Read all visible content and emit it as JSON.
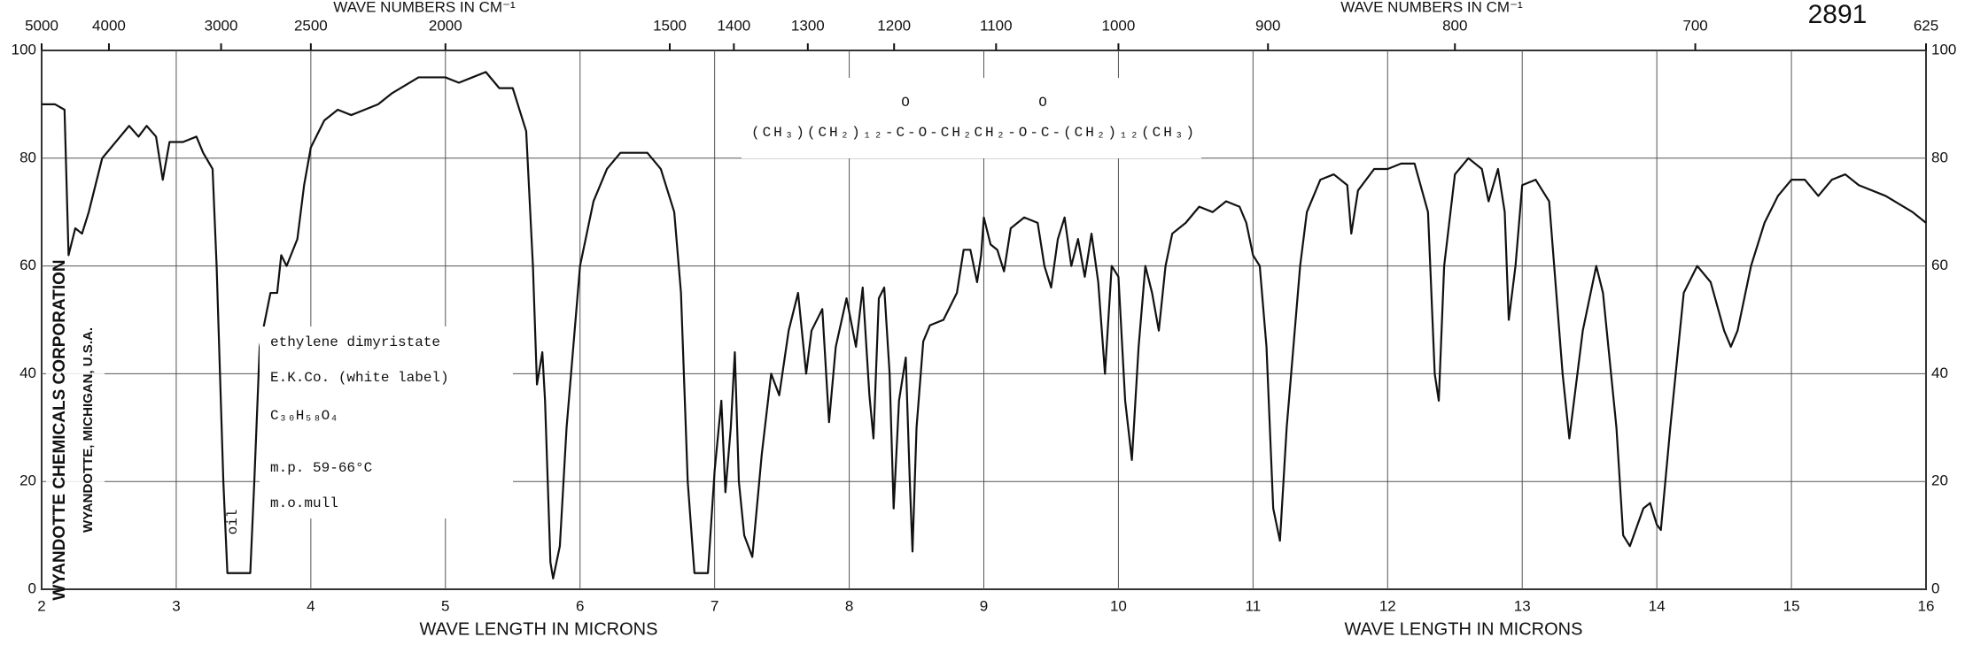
{
  "chart_data": {
    "type": "line",
    "title": "2891",
    "x_label": "WAVE LENGTH IN MICRONS",
    "x2_label": "WAVE NUMBERS IN CM⁻¹",
    "x": [
      2.0,
      2.1,
      2.17,
      2.2,
      2.25,
      2.3,
      2.35,
      2.45,
      2.55,
      2.65,
      2.72,
      2.78,
      2.85,
      2.9,
      2.95,
      3.05,
      3.15,
      3.2,
      3.27,
      3.3,
      3.35,
      3.38,
      3.55,
      3.58,
      3.62,
      3.7,
      3.75,
      3.78,
      3.82,
      3.9,
      3.95,
      4.0,
      4.1,
      4.2,
      4.3,
      4.5,
      4.6,
      4.8,
      5.0,
      5.1,
      5.2,
      5.3,
      5.4,
      5.5,
      5.6,
      5.65,
      5.68,
      5.72,
      5.74,
      5.78,
      5.8,
      5.85,
      5.9,
      5.95,
      6.0,
      6.1,
      6.2,
      6.3,
      6.4,
      6.5,
      6.6,
      6.7,
      6.75,
      6.8,
      6.85,
      6.95,
      7.0,
      7.05,
      7.08,
      7.12,
      7.15,
      7.18,
      7.22,
      7.28,
      7.35,
      7.42,
      7.48,
      7.55,
      7.62,
      7.68,
      7.72,
      7.8,
      7.85,
      7.9,
      7.98,
      8.05,
      8.1,
      8.15,
      8.18,
      8.22,
      8.26,
      8.3,
      8.33,
      8.37,
      8.42,
      8.45,
      8.47,
      8.5,
      8.55,
      8.6,
      8.7,
      8.8,
      8.85,
      8.9,
      8.95,
      8.98,
      9.0,
      9.05,
      9.1,
      9.15,
      9.2,
      9.3,
      9.4,
      9.45,
      9.5,
      9.55,
      9.6,
      9.65,
      9.7,
      9.75,
      9.8,
      9.85,
      9.9,
      9.95,
      10.0,
      10.05,
      10.1,
      10.15,
      10.2,
      10.25,
      10.3,
      10.35,
      10.4,
      10.5,
      10.6,
      10.7,
      10.8,
      10.9,
      10.95,
      11.0,
      11.05,
      11.1,
      11.15,
      11.2,
      11.25,
      11.35,
      11.4,
      11.5,
      11.6,
      11.7,
      11.73,
      11.78,
      11.9,
      12.0,
      12.1,
      12.2,
      12.3,
      12.35,
      12.38,
      12.42,
      12.5,
      12.6,
      12.7,
      12.75,
      12.82,
      12.87,
      12.9,
      12.95,
      13.0,
      13.1,
      13.2,
      13.3,
      13.35,
      13.45,
      13.55,
      13.6,
      13.7,
      13.75,
      13.8,
      13.9,
      13.95,
      14.0,
      14.03,
      14.1,
      14.2,
      14.3,
      14.4,
      14.5,
      14.55,
      14.6,
      14.7,
      14.8,
      14.9,
      15.0,
      15.1,
      15.2,
      15.3,
      15.4,
      15.5,
      15.7,
      15.9,
      16.0
    ],
    "values": [
      90,
      90,
      89,
      62,
      67,
      66,
      70,
      80,
      83,
      86,
      84,
      86,
      84,
      76,
      83,
      83,
      84,
      81,
      78,
      60,
      20,
      3,
      3,
      20,
      45,
      55,
      55,
      62,
      60,
      65,
      75,
      82,
      87,
      89,
      88,
      90,
      92,
      95,
      95,
      94,
      95,
      96,
      93,
      93,
      85,
      60,
      38,
      44,
      35,
      5,
      2,
      8,
      30,
      45,
      60,
      72,
      78,
      81,
      81,
      81,
      78,
      70,
      55,
      20,
      3,
      3,
      22,
      35,
      18,
      30,
      44,
      20,
      10,
      6,
      25,
      40,
      36,
      48,
      55,
      40,
      48,
      52,
      31,
      45,
      54,
      45,
      56,
      36,
      28,
      54,
      56,
      40,
      15,
      35,
      43,
      20,
      7,
      30,
      46,
      49,
      50,
      55,
      63,
      63,
      57,
      62,
      69,
      64,
      63,
      59,
      67,
      69,
      68,
      60,
      56,
      65,
      69,
      60,
      65,
      58,
      66,
      57,
      40,
      60,
      58,
      35,
      24,
      45,
      60,
      55,
      48,
      60,
      66,
      68,
      71,
      70,
      72,
      71,
      68,
      62,
      60,
      45,
      15,
      9,
      30,
      60,
      70,
      76,
      77,
      75,
      66,
      74,
      78,
      78,
      79,
      79,
      70,
      40,
      35,
      60,
      77,
      80,
      78,
      72,
      78,
      70,
      50,
      60,
      75,
      76,
      72,
      40,
      28,
      48,
      60,
      55,
      30,
      10,
      8,
      15,
      16,
      12,
      11,
      30,
      55,
      60,
      57,
      48,
      45,
      48,
      60,
      68,
      73,
      76,
      76,
      73,
      76,
      77,
      75,
      73,
      70,
      68
    ],
    "color": "#111111",
    "xlim": [
      2,
      16
    ],
    "xticks": [
      2,
      3,
      4,
      5,
      6,
      7,
      8,
      9,
      10,
      11,
      12,
      13,
      14,
      15,
      16
    ],
    "x2ticks": [
      {
        "value": 2,
        "label": "5000"
      },
      {
        "value": 2.5,
        "label": "4000"
      },
      {
        "value": 3.3333,
        "label": "3000"
      },
      {
        "value": 4,
        "label": "2500"
      },
      {
        "value": 5,
        "label": "2000"
      },
      {
        "value": 6.6667,
        "label": "1500"
      },
      {
        "value": 7.1429,
        "label": "1400"
      },
      {
        "value": 7.6923,
        "label": "1300"
      },
      {
        "value": 8.3333,
        "label": "1200"
      },
      {
        "value": 9.0909,
        "label": "1100"
      },
      {
        "value": 10,
        "label": "1000"
      },
      {
        "value": 11.1111,
        "label": "900"
      },
      {
        "value": 12.5,
        "label": "800"
      },
      {
        "value": 14.2857,
        "label": "700"
      },
      {
        "value": 16,
        "label": "625"
      }
    ],
    "ylim": [
      0,
      100
    ],
    "yticks": [
      0,
      20,
      40,
      60,
      80,
      100
    ],
    "grid": true,
    "formula": "(CH₃)(CH₂)₁₂-C-O-CH₂CH₂-O-C-(CH₂)₁₂(CH₃)",
    "carbonyl": "O",
    "sample": [
      "ethylene dimyristate",
      "E.K.Co. (white label)",
      "C₃₀H₅₈O₄",
      "m.p. 59-66°C",
      "m.o.mull"
    ],
    "band_note": "oil",
    "publisher": [
      "WYANDOTTE CHEMICALS CORPORATION",
      "WYANDOTTE, MICHIGAN, U.S.A."
    ]
  }
}
